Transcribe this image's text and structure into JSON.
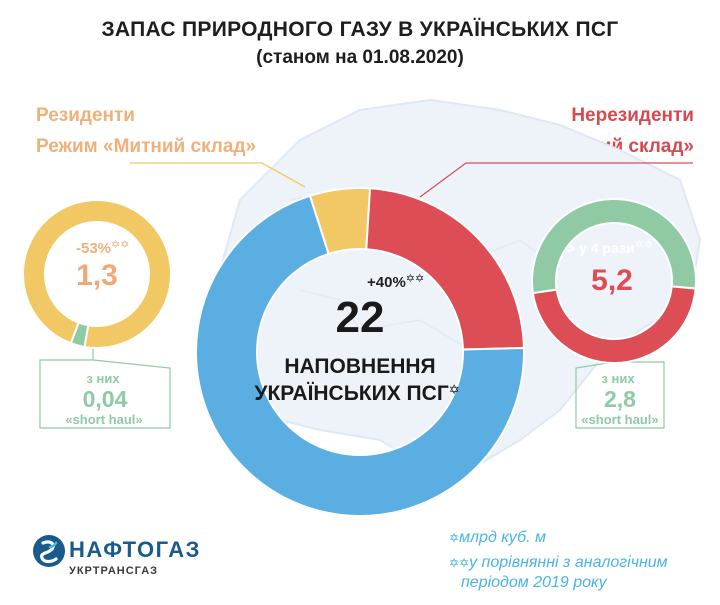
{
  "header": {
    "title": "ЗАПАС ПРИРОДНОГО ГАЗУ В УКРАЇНСЬКИХ ПСГ",
    "subtitle": "(станом на 01.08.2020)"
  },
  "left_panel": {
    "line1": "Резиденти",
    "line2": "Режим «Митний склад»",
    "change": "-53%",
    "value": "1,3",
    "sub_label": "з них",
    "sub_value": "0,04",
    "sub_name": "«short haul»"
  },
  "right_panel": {
    "line1": "Нерезиденти",
    "line2": "Режим «Митний склад»",
    "change": "> у 4 рази",
    "value": "5,2",
    "sub_label": "з них",
    "sub_value": "2,8",
    "sub_name": "«short haul»"
  },
  "center": {
    "change": "+40%",
    "value": "22",
    "caption_line1": "НАПОВНЕННЯ",
    "caption_line2": "УКРАЇНСЬКИХ ПСГ"
  },
  "footnotes": {
    "unit_marker": "✡",
    "comparison_marker": "✡✡",
    "unit": "млрд куб. м",
    "comparison_line1": "у порівнянні з аналогічним",
    "comparison_line2": "періодом 2019 року"
  },
  "brand": {
    "name": "НАФТОГАЗ",
    "subname": "УКРТРАНСГАЗ"
  },
  "colors": {
    "residents": "#f1c864",
    "nonresidents": "#dc4d55",
    "short_haul": "#8fcaa5",
    "ukrainian": "#5aaee2",
    "title": "#1e1e1e"
  },
  "chart_data": [
    {
      "type": "pie",
      "subtype": "donut",
      "title": "НАПОВНЕННЯ УКРАЇНСЬКИХ ПСГ",
      "total": 22,
      "unit": "млрд куб. м",
      "change_vs_2019": "+40%",
      "slices": [
        {
          "name": "Резиденти Режим «Митний склад»",
          "value": 1.3,
          "color": "#f1c864"
        },
        {
          "name": "Нерезиденти Режим «Митний склад»",
          "value": 5.2,
          "color": "#dc4d55"
        },
        {
          "name": "",
          "value": 15.5,
          "color": "#5aaee2"
        }
      ]
    },
    {
      "type": "pie",
      "subtype": "donut",
      "title": "Резиденти Режим «Митний склад»",
      "total": 1.3,
      "change_vs_2019": "-53%",
      "slices": [
        {
          "name": "«short haul»",
          "value": 0.04,
          "color": "#8fcaa5"
        },
        {
          "name": "",
          "value": 1.26,
          "color": "#f1c864"
        }
      ]
    },
    {
      "type": "pie",
      "subtype": "donut",
      "title": "Нерезиденти Режим «Митний склад»",
      "total": 5.2,
      "change_vs_2019": "> у 4 рази",
      "slices": [
        {
          "name": "«short haul»",
          "value": 2.8,
          "color": "#8fcaa5"
        },
        {
          "name": "",
          "value": 2.4,
          "color": "#dc4d55"
        }
      ]
    }
  ]
}
